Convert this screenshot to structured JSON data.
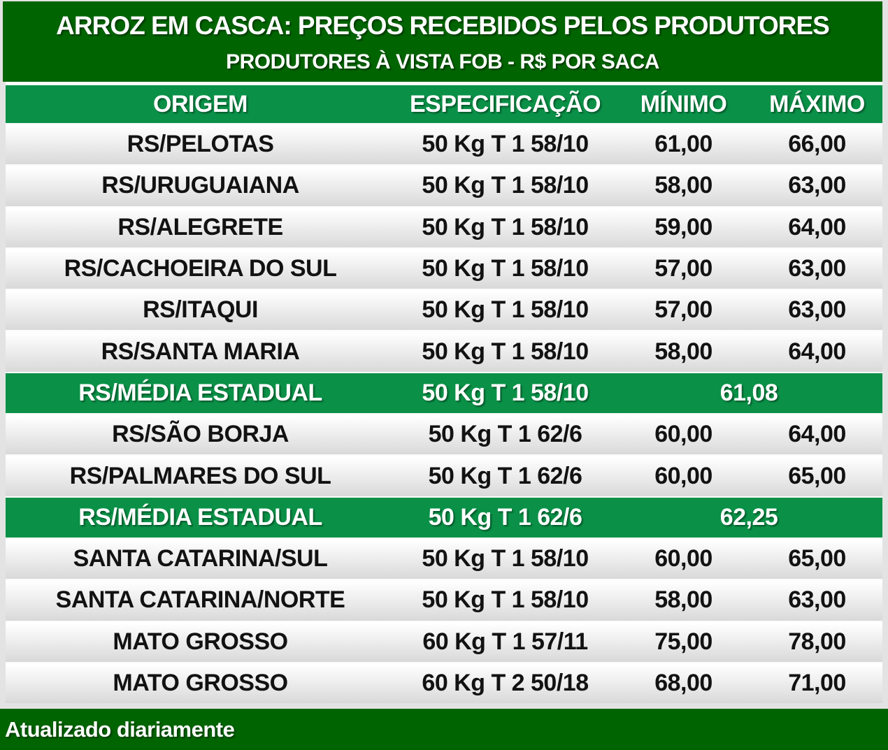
{
  "colors": {
    "dark_green": "#006400",
    "medium_green": "#0a9147",
    "row_gradient_top": "#ffffff",
    "row_gradient_bottom": "#d9d9d9",
    "text_dark": "#121212",
    "text_light": "#ffffff",
    "page_background": "#e3e3e3"
  },
  "chart_data": {
    "type": "table",
    "title": "ARROZ EM CASCA: PREÇOS RECEBIDOS PELOS PRODUTORES",
    "subtitle": "PRODUTORES À VISTA FOB - R$ POR SACA",
    "columns": [
      "ORIGEM",
      "ESPECIFICAÇÃO",
      "MÍNIMO",
      "MÁXIMO"
    ],
    "rows": [
      {
        "origem": "RS/PELOTAS",
        "especificacao": "50 Kg T 1 58/10",
        "minimo": "61,00",
        "maximo": "66,00"
      },
      {
        "origem": "RS/URUGUAIANA",
        "especificacao": "50 Kg T 1 58/10",
        "minimo": "58,00",
        "maximo": "63,00"
      },
      {
        "origem": "RS/ALEGRETE",
        "especificacao": "50 Kg T 1 58/10",
        "minimo": "59,00",
        "maximo": "64,00"
      },
      {
        "origem": "RS/CACHOEIRA DO SUL",
        "especificacao": "50 Kg T 1 58/10",
        "minimo": "57,00",
        "maximo": "63,00"
      },
      {
        "origem": "RS/ITAQUI",
        "especificacao": "50 Kg T 1 58/10",
        "minimo": "57,00",
        "maximo": "63,00"
      },
      {
        "origem": "RS/SANTA MARIA",
        "especificacao": "50 Kg T 1 58/10",
        "minimo": "58,00",
        "maximo": "64,00"
      },
      {
        "origem": "RS/MÉDIA ESTADUAL",
        "especificacao": "50 Kg T 1 58/10",
        "media": "61,08",
        "highlight": true
      },
      {
        "origem": "RS/SÃO BORJA",
        "especificacao": "50 Kg T 1 62/6",
        "minimo": "60,00",
        "maximo": "64,00"
      },
      {
        "origem": "RS/PALMARES DO SUL",
        "especificacao": "50 Kg T 1 62/6",
        "minimo": "60,00",
        "maximo": "65,00"
      },
      {
        "origem": "RS/MÉDIA ESTADUAL",
        "especificacao": "50 Kg T 1 62/6",
        "media": "62,25",
        "highlight": true
      },
      {
        "origem": "SANTA CATARINA/SUL",
        "especificacao": "50 Kg T 1 58/10",
        "minimo": "60,00",
        "maximo": "65,00"
      },
      {
        "origem": "SANTA CATARINA/NORTE",
        "especificacao": "50 Kg T 1 58/10",
        "minimo": "58,00",
        "maximo": "63,00"
      },
      {
        "origem": "MATO GROSSO",
        "especificacao": "60 Kg T 1 57/11",
        "minimo": "75,00",
        "maximo": "78,00"
      },
      {
        "origem": "MATO GROSSO",
        "especificacao": "60 Kg T 2 50/18",
        "minimo": "68,00",
        "maximo": "71,00"
      }
    ],
    "footer": "Atualizado diariamente",
    "layout_hints": {
      "grid": "off",
      "highlight_rows_are_state_averages": true
    }
  }
}
